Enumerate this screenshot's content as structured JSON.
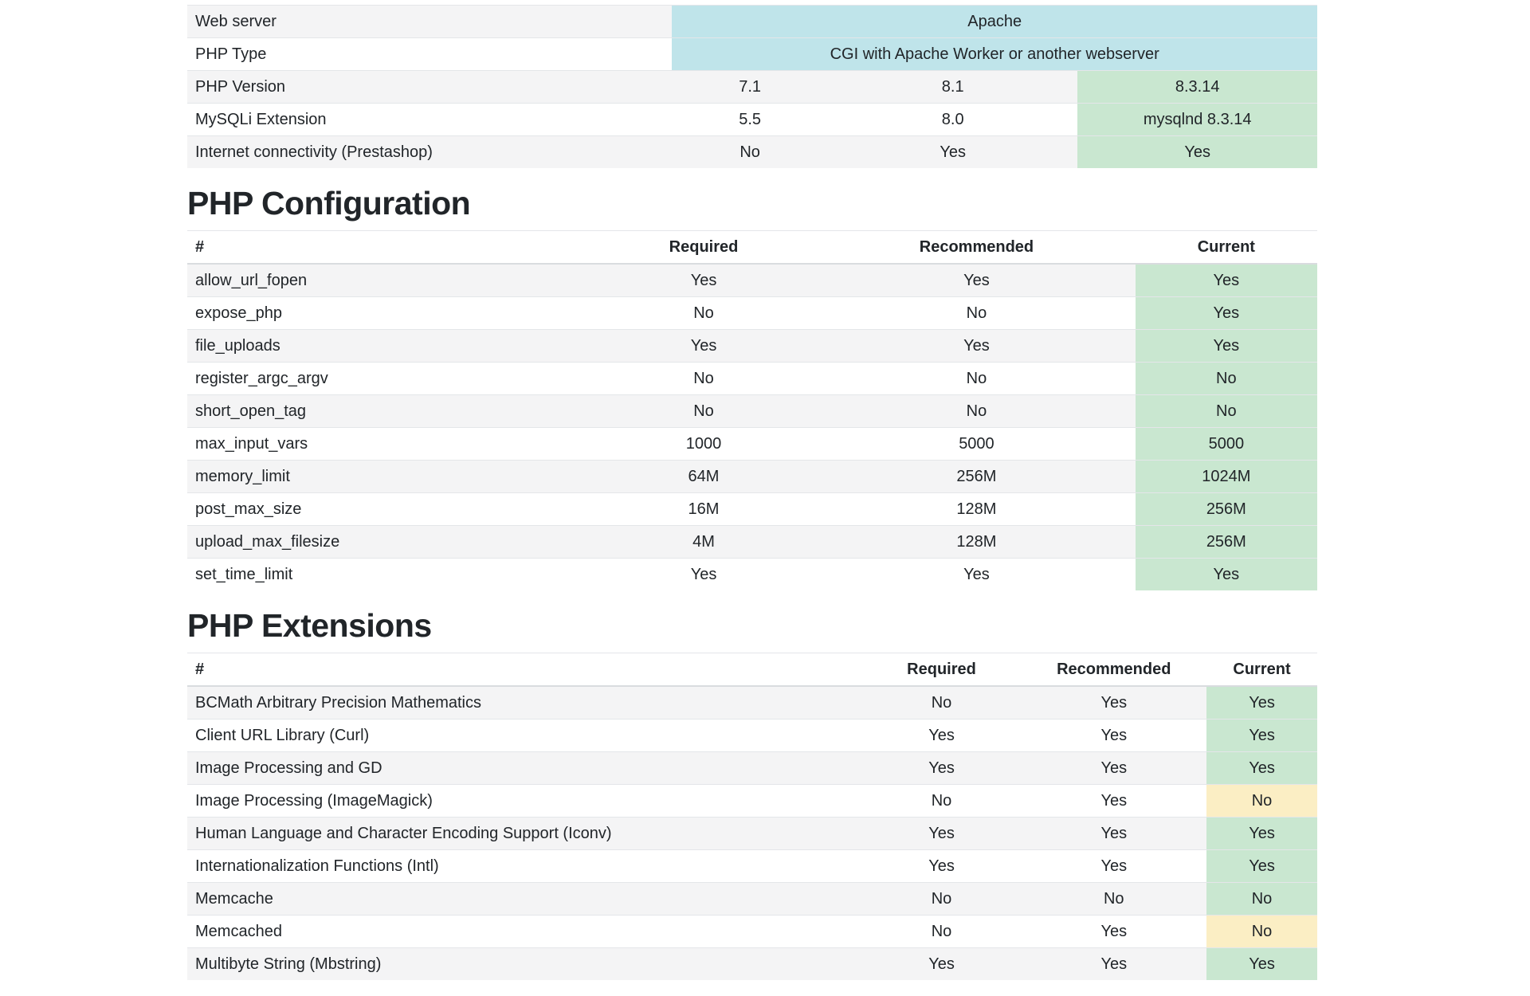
{
  "colors": {
    "success": "#c9e7d0",
    "warning": "#fbeec4",
    "info": "#bfe4ea",
    "stripe": "#f4f4f5",
    "border": "#e4e6e9",
    "header_border": "#d9dcdf",
    "text": "#212529"
  },
  "summary_table": {
    "rows": [
      {
        "label": "Web server",
        "span_value": "Apache"
      },
      {
        "label": "PHP Type",
        "span_value": "CGI with Apache Worker or another webserver"
      },
      {
        "label": "PHP Version",
        "required": "7.1",
        "recommended": "8.1",
        "current": "8.3.14",
        "status": "success"
      },
      {
        "label": "MySQLi Extension",
        "required": "5.5",
        "recommended": "8.0",
        "current": "mysqlnd 8.3.14",
        "status": "success"
      },
      {
        "label": "Internet connectivity (Prestashop)",
        "required": "No",
        "recommended": "Yes",
        "current": "Yes",
        "status": "success"
      }
    ]
  },
  "php_configuration": {
    "title": "PHP Configuration",
    "headers": [
      "#",
      "Required",
      "Recommended",
      "Current"
    ],
    "rows": [
      {
        "label": "allow_url_fopen",
        "required": "Yes",
        "recommended": "Yes",
        "current": "Yes",
        "status": "success"
      },
      {
        "label": "expose_php",
        "required": "No",
        "recommended": "No",
        "current": "Yes",
        "status": "success"
      },
      {
        "label": "file_uploads",
        "required": "Yes",
        "recommended": "Yes",
        "current": "Yes",
        "status": "success"
      },
      {
        "label": "register_argc_argv",
        "required": "No",
        "recommended": "No",
        "current": "No",
        "status": "success"
      },
      {
        "label": "short_open_tag",
        "required": "No",
        "recommended": "No",
        "current": "No",
        "status": "success"
      },
      {
        "label": "max_input_vars",
        "required": "1000",
        "recommended": "5000",
        "current": "5000",
        "status": "success"
      },
      {
        "label": "memory_limit",
        "required": "64M",
        "recommended": "256M",
        "current": "1024M",
        "status": "success"
      },
      {
        "label": "post_max_size",
        "required": "16M",
        "recommended": "128M",
        "current": "256M",
        "status": "success"
      },
      {
        "label": "upload_max_filesize",
        "required": "4M",
        "recommended": "128M",
        "current": "256M",
        "status": "success"
      },
      {
        "label": "set_time_limit",
        "required": "Yes",
        "recommended": "Yes",
        "current": "Yes",
        "status": "success"
      }
    ]
  },
  "php_extensions": {
    "title": "PHP Extensions",
    "headers": [
      "#",
      "Required",
      "Recommended",
      "Current"
    ],
    "rows": [
      {
        "label": "BCMath Arbitrary Precision Mathematics",
        "required": "No",
        "recommended": "Yes",
        "current": "Yes",
        "status": "success"
      },
      {
        "label": "Client URL Library (Curl)",
        "required": "Yes",
        "recommended": "Yes",
        "current": "Yes",
        "status": "success"
      },
      {
        "label": "Image Processing and GD",
        "required": "Yes",
        "recommended": "Yes",
        "current": "Yes",
        "status": "success"
      },
      {
        "label": "Image Processing (ImageMagick)",
        "required": "No",
        "recommended": "Yes",
        "current": "No",
        "status": "warning"
      },
      {
        "label": "Human Language and Character Encoding Support (Iconv)",
        "required": "Yes",
        "recommended": "Yes",
        "current": "Yes",
        "status": "success"
      },
      {
        "label": "Internationalization Functions (Intl)",
        "required": "Yes",
        "recommended": "Yes",
        "current": "Yes",
        "status": "success"
      },
      {
        "label": "Memcache",
        "required": "No",
        "recommended": "No",
        "current": "No",
        "status": "success"
      },
      {
        "label": "Memcached",
        "required": "No",
        "recommended": "Yes",
        "current": "No",
        "status": "warning"
      },
      {
        "label": "Multibyte String (Mbstring)",
        "required": "Yes",
        "recommended": "Yes",
        "current": "Yes",
        "status": "success"
      }
    ]
  }
}
